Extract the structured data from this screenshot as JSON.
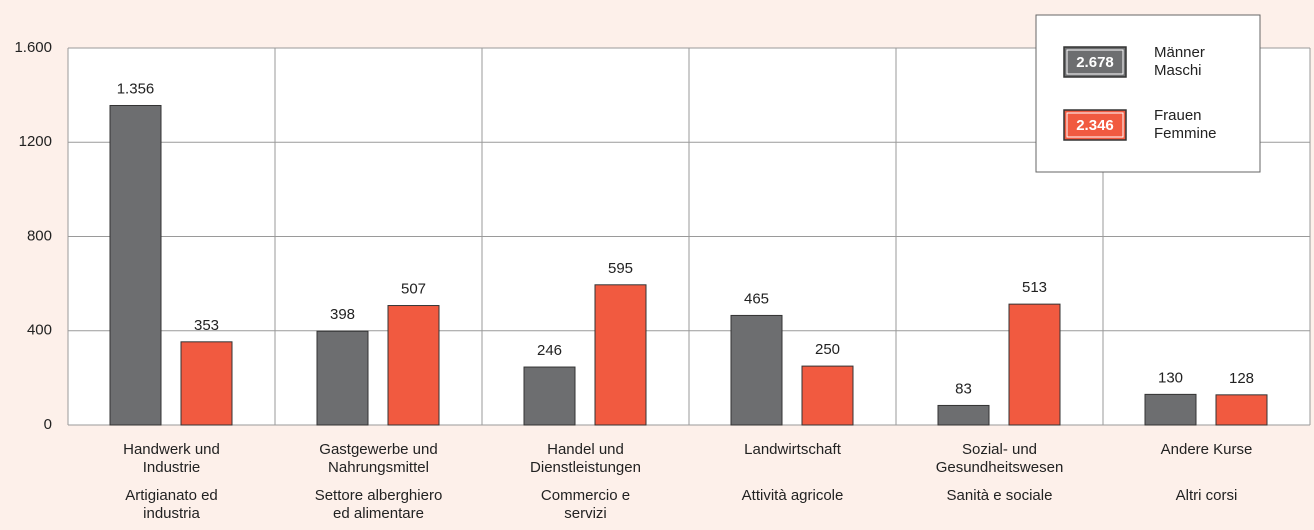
{
  "chart_data": {
    "type": "bar",
    "categories": [
      {
        "de": [
          "Handwerk und",
          "Industrie"
        ],
        "it": [
          "Artigianato ed",
          "industria"
        ]
      },
      {
        "de": [
          "Gastgewerbe und",
          "Nahrungsmittel"
        ],
        "it": [
          "Settore alberghiero",
          "ed alimentare"
        ]
      },
      {
        "de": [
          "Handel und",
          "Dienstleistungen"
        ],
        "it": [
          "Commercio e",
          "servizi"
        ]
      },
      {
        "de": [
          "Landwirtschaft"
        ],
        "it": [
          "Attività agricole"
        ]
      },
      {
        "de": [
          "Sozial- und",
          "Gesundheitswesen"
        ],
        "it": [
          "Sanità e sociale"
        ]
      },
      {
        "de": [
          "Andere Kurse"
        ],
        "it": [
          "Altri corsi"
        ]
      }
    ],
    "series": [
      {
        "name": [
          "Männer",
          "Maschi"
        ],
        "color": "#6d6e70",
        "total": 2678,
        "total_label": "2.678",
        "values": [
          1356,
          398,
          246,
          465,
          83,
          130
        ],
        "value_labels": [
          "1.356",
          "398",
          "246",
          "465",
          "83",
          "130"
        ]
      },
      {
        "name": [
          "Frauen",
          "Femmine"
        ],
        "color": "#f15a40",
        "total": 2346,
        "total_label": "2.346",
        "values": [
          353,
          507,
          595,
          250,
          513,
          128
        ],
        "value_labels": [
          "353",
          "507",
          "595",
          "250",
          "513",
          "128"
        ]
      }
    ],
    "ylim": [
      0,
      1600
    ],
    "yticks": [
      0,
      400,
      800,
      1200,
      {
        "value": 1600,
        "label": "1.600"
      }
    ],
    "grid": true
  }
}
